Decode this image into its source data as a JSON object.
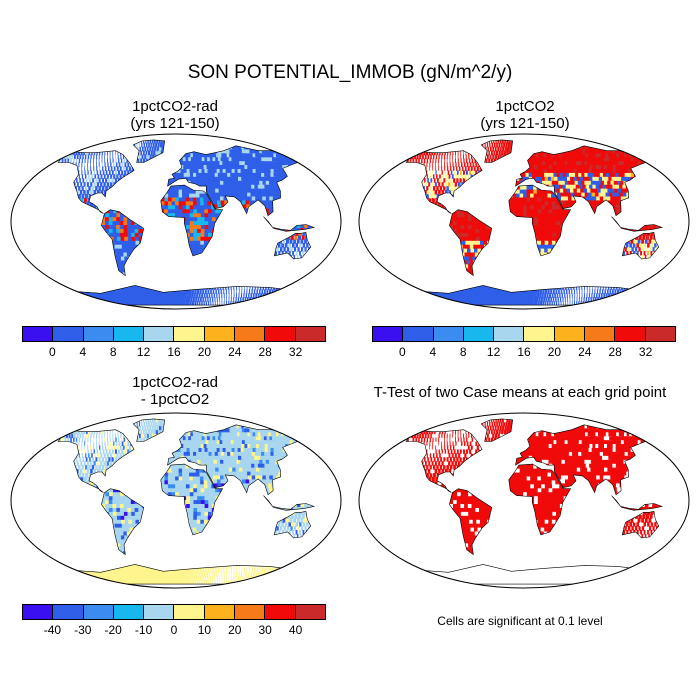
{
  "title": "SON POTENTIAL_IMMOB (gN/m^2/y)",
  "panels": [
    {
      "title_line1": "1pctCO2-rad",
      "title_line2": "(yrs 121-150)",
      "field": "absolute-low"
    },
    {
      "title_line1": "1pctCO2",
      "title_line2": "(yrs 121-150)",
      "field": "absolute-high"
    },
    {
      "title_line1": "1pctCO2-rad",
      "title_line2": "- 1pctCO2",
      "field": "difference"
    },
    {
      "title_line1": "T-Test of two Case means at each grid point",
      "title_line2": "",
      "field": "significance"
    }
  ],
  "colorbar_abs": {
    "colors": [
      "#3a10f0",
      "#2f5fe8",
      "#3a8cf0",
      "#18b8ef",
      "#a8d6ee",
      "#fff58e",
      "#fbb21c",
      "#f77a1a",
      "#f00a0a",
      "#cb2a2a"
    ],
    "labels": [
      "0",
      "4",
      "8",
      "12",
      "16",
      "20",
      "24",
      "28",
      "32"
    ]
  },
  "colorbar_diff": {
    "colors": [
      "#3a10f0",
      "#2f5fe8",
      "#3a8cf0",
      "#18b8ef",
      "#a8d6ee",
      "#fff58e",
      "#fbb21c",
      "#f77a1a",
      "#f00a0a",
      "#cb2a2a"
    ],
    "labels": [
      "-40",
      "-30",
      "-20",
      "-10",
      "0",
      "10",
      "20",
      "30",
      "40"
    ]
  },
  "significance_note": "Cells are significant at 0.1 level",
  "significance_color": "#f00a0a"
}
